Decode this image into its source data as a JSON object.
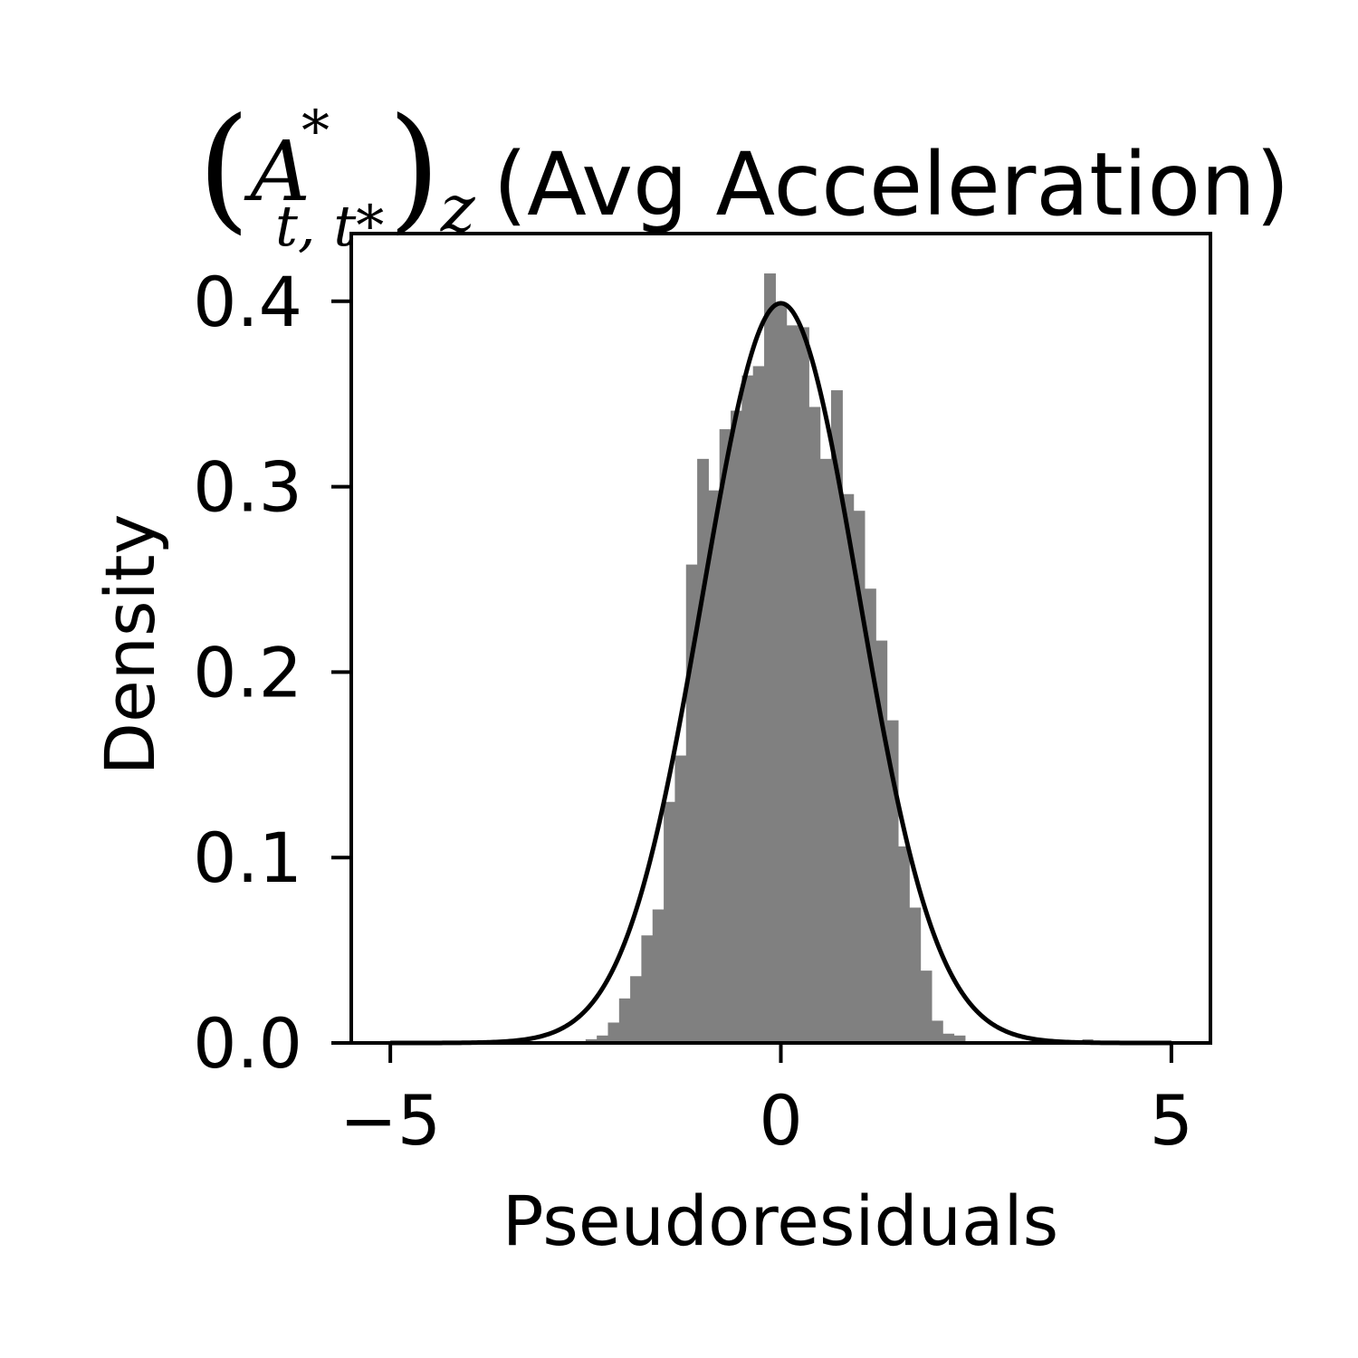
{
  "chart_data": {
    "type": "bar",
    "title": {
      "math_base": "A",
      "math_superscript": "*",
      "math_subscript": "t, t*",
      "math_outer_subscript": "z",
      "text": "(Avg Acceleration)"
    },
    "xlabel": "Pseudoresiduals",
    "ylabel": "Density",
    "xlim": [
      -5.5,
      5.5
    ],
    "ylim": [
      0,
      0.4365
    ],
    "x_ticks": [
      -5,
      0,
      5
    ],
    "x_tick_labels": [
      "−5",
      "0",
      "5"
    ],
    "y_ticks": [
      0.0,
      0.1,
      0.2,
      0.3,
      0.4
    ],
    "y_tick_labels": [
      "0.0",
      "0.1",
      "0.2",
      "0.3",
      "0.4"
    ],
    "grid": false,
    "histogram": {
      "color": "#808080",
      "bin_edges": [
        -2.5,
        -2.357,
        -2.214,
        -2.071,
        -1.929,
        -1.786,
        -1.643,
        -1.5,
        -1.357,
        -1.214,
        -1.071,
        -0.929,
        -0.786,
        -0.643,
        -0.5,
        -0.357,
        -0.214,
        -0.071,
        0.071,
        0.214,
        0.357,
        0.5,
        0.643,
        0.786,
        0.929,
        1.071,
        1.214,
        1.357,
        1.5,
        1.643,
        1.786,
        1.929,
        2.071,
        2.214,
        2.357,
        2.5
      ],
      "densities": [
        0.002,
        0.004,
        0.011,
        0.024,
        0.036,
        0.058,
        0.072,
        0.13,
        0.155,
        0.258,
        0.315,
        0.298,
        0.331,
        0.341,
        0.36,
        0.365,
        0.415,
        0.398,
        0.387,
        0.386,
        0.343,
        0.315,
        0.352,
        0.296,
        0.287,
        0.245,
        0.217,
        0.174,
        0.106,
        0.073,
        0.039,
        0.012,
        0.005,
        0.004,
        0.0
      ],
      "outlier_bins": [
        {
          "x0": 3.86,
          "x1": 4.0,
          "density": 0.002
        }
      ]
    },
    "reference_curve": {
      "name": "Standard normal density",
      "mean": 0,
      "sd": 1,
      "x_range": [
        -5,
        5
      ],
      "color": "#000000"
    }
  }
}
